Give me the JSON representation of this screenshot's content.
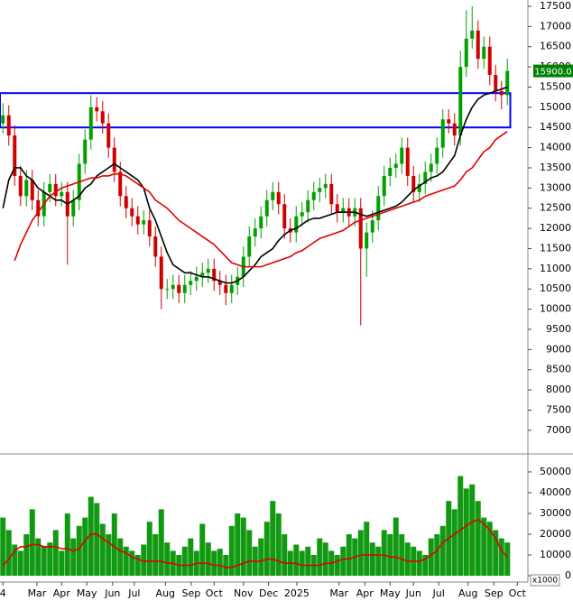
{
  "chart_data": [
    {
      "type": "candlestick",
      "x": [
        0.5,
        1.5,
        2.5,
        3.5,
        4.5,
        5.5,
        6.5,
        7.5,
        8.5,
        9.5,
        10.5,
        11.5,
        12.5,
        13.5,
        14.5,
        15.5,
        16.5,
        17.5,
        18.5,
        19.5,
        20.5,
        21.5,
        22.5,
        23.5,
        24.5,
        25.5,
        26.5,
        27.5,
        28.5,
        29.5,
        30.5,
        31.5,
        32.5,
        33.5,
        34.5,
        35.5,
        36.5,
        37.5,
        38.5,
        39.5,
        40.5,
        41.5,
        42.5,
        43.5,
        44.5,
        45.5,
        46.5,
        47.5,
        48.5,
        49.5,
        50.5,
        51.5,
        52.5,
        53.5,
        54.5,
        55.5,
        56.5,
        57.5,
        58.5,
        59.5,
        60.5,
        61.5,
        62.5,
        63.5,
        64.5,
        65.5,
        66.5,
        67.5,
        68.5,
        69.5,
        70.5,
        71.5,
        72.5,
        73.5,
        74.5,
        75.5,
        76.5,
        77.5,
        78.5,
        79.5,
        80.5,
        81.5,
        82.5,
        83.5,
        84.5,
        85.5,
        86.5
      ],
      "open": [
        14600,
        14800,
        14300,
        13300,
        12800,
        13200,
        12700,
        12300,
        12900,
        13100,
        12800,
        12900,
        12300,
        12700,
        13600,
        14200,
        15000,
        14900,
        14600,
        14000,
        13400,
        12800,
        12500,
        12300,
        12100,
        12200,
        11800,
        11300,
        10500,
        10500,
        10600,
        10400,
        10600,
        10700,
        10800,
        10900,
        11000,
        10700,
        10600,
        10400,
        10600,
        10800,
        11300,
        11800,
        12000,
        12300,
        12700,
        12900,
        12600,
        12000,
        11900,
        12300,
        12400,
        12700,
        12900,
        13000,
        13100,
        12600,
        12400,
        12500,
        12300,
        12500,
        11500,
        11900,
        12200,
        12800,
        13300,
        13500,
        13600,
        14000,
        13300,
        12900,
        13100,
        13400,
        13600,
        14000,
        14700,
        14600,
        14300,
        16000,
        16700,
        16900,
        16200,
        16500,
        15800,
        15400,
        15300
      ],
      "high": [
        15100,
        15050,
        14550,
        13550,
        13450,
        13450,
        12950,
        13150,
        13350,
        13350,
        13150,
        13150,
        12950,
        13850,
        14450,
        15300,
        15250,
        15150,
        14850,
        14250,
        13650,
        13050,
        12750,
        12550,
        12450,
        12450,
        12050,
        11550,
        10750,
        10850,
        10850,
        10850,
        10950,
        11050,
        11150,
        11250,
        11250,
        10950,
        10850,
        10850,
        11050,
        11550,
        12050,
        12250,
        12550,
        12950,
        13150,
        13150,
        12850,
        12250,
        12550,
        12650,
        12950,
        13150,
        13250,
        13350,
        13350,
        12850,
        12750,
        12750,
        12750,
        12750,
        12150,
        12450,
        13050,
        13550,
        13750,
        13850,
        14250,
        14250,
        13550,
        13350,
        13650,
        13850,
        14250,
        14950,
        14950,
        14850,
        16400,
        17400,
        17500,
        17150,
        16750,
        16750,
        16050,
        15650,
        16200
      ],
      "low": [
        14350,
        14050,
        13050,
        12550,
        12550,
        12450,
        12050,
        12050,
        12650,
        12550,
        12550,
        11100,
        12050,
        12450,
        13350,
        13950,
        14650,
        14350,
        13750,
        13150,
        12550,
        12250,
        12050,
        11850,
        11850,
        11550,
        11050,
        10000,
        10250,
        10250,
        10150,
        10150,
        10350,
        10450,
        10550,
        10650,
        10450,
        10350,
        10100,
        10150,
        10350,
        10550,
        11050,
        11550,
        11750,
        12050,
        12450,
        12350,
        11750,
        11650,
        11650,
        12050,
        12150,
        12450,
        12650,
        12750,
        12350,
        12150,
        12150,
        12050,
        12050,
        9600,
        10800,
        11650,
        11950,
        12550,
        13050,
        13250,
        13350,
        13050,
        12650,
        12650,
        12850,
        13150,
        13350,
        13750,
        14350,
        14050,
        14050,
        15750,
        16450,
        15950,
        15950,
        15550,
        15150,
        14950,
        15050
      ],
      "close": [
        14800,
        14300,
        13300,
        12800,
        13200,
        12700,
        12300,
        12900,
        13100,
        12800,
        12900,
        12300,
        12700,
        13600,
        14200,
        15000,
        14900,
        14600,
        14000,
        13400,
        12800,
        12500,
        12300,
        12100,
        12200,
        11800,
        11300,
        10500,
        10500,
        10600,
        10400,
        10600,
        10700,
        10800,
        10900,
        11000,
        10700,
        10600,
        10400,
        10600,
        10800,
        11300,
        11800,
        12000,
        12300,
        12700,
        12900,
        12600,
        12000,
        11900,
        12300,
        12400,
        12700,
        12900,
        13000,
        13100,
        12600,
        12400,
        12500,
        12300,
        12500,
        11500,
        11900,
        12200,
        12800,
        13300,
        13500,
        13600,
        14000,
        13300,
        12900,
        13100,
        13400,
        13600,
        14000,
        14700,
        14600,
        14300,
        16000,
        16700,
        16900,
        16200,
        16500,
        15800,
        15400,
        15300,
        15900
      ],
      "up_color": "#00a000",
      "down_color": "#d00000",
      "series": [
        {
          "color": "#000000",
          "values": [
            12500,
            13200,
            13500,
            13500,
            13300,
            13200,
            13000,
            12900,
            12800,
            12700,
            12700,
            12600,
            12700,
            12800,
            13000,
            13100,
            13300,
            13400,
            13500,
            13600,
            13500,
            13400,
            13300,
            13200,
            13000,
            12500,
            12200,
            11800,
            11400,
            11100,
            11000,
            10900,
            10900,
            10850,
            10800,
            10800,
            10750,
            10700,
            10650,
            10650,
            10700,
            10800,
            10950,
            11100,
            11300,
            11400,
            11500,
            11700,
            11850,
            11950,
            12000,
            12100,
            12200,
            12250,
            12250,
            12300,
            12350,
            12400,
            12400,
            12400,
            12400,
            12350,
            12300,
            12350,
            12400,
            12450,
            12500,
            12550,
            12650,
            12800,
            12950,
            13050,
            13150,
            13250,
            13300,
            13400,
            13600,
            13800,
            14300,
            14700,
            15000,
            15200,
            15300,
            15350,
            15400,
            15450,
            15500
          ]
        },
        {
          "color": "#e00000",
          "values": [
            null,
            null,
            11200,
            11600,
            11900,
            12200,
            12400,
            12600,
            12800,
            12900,
            13000,
            13050,
            13100,
            13150,
            13200,
            13250,
            13250,
            13300,
            13300,
            13350,
            13350,
            13300,
            13200,
            13100,
            13000,
            12900,
            12700,
            12600,
            12500,
            12350,
            12200,
            12100,
            12000,
            11900,
            11800,
            11700,
            11600,
            11450,
            11300,
            11150,
            11100,
            11050,
            11050,
            11050,
            11050,
            11100,
            11150,
            11200,
            11250,
            11300,
            11400,
            11450,
            11550,
            11650,
            11750,
            11800,
            11850,
            11900,
            11950,
            12050,
            12150,
            12200,
            12250,
            12300,
            12350,
            12400,
            12450,
            12500,
            12550,
            12600,
            12650,
            12700,
            12800,
            12850,
            12900,
            12950,
            13000,
            13050,
            13200,
            13400,
            13500,
            13700,
            13900,
            14000,
            14200,
            14300,
            14400
          ]
        }
      ],
      "xlim": [
        0,
        90
      ],
      "ylim": [
        6483,
        17656
      ],
      "yticks": [
        7000,
        7500,
        8000,
        8500,
        9000,
        9500,
        10000,
        10500,
        11000,
        11500,
        12000,
        12500,
        13000,
        13500,
        14000,
        14500,
        15000,
        15500,
        16000,
        16500,
        17000,
        17500
      ],
      "annotation_box": {
        "x": [
          0,
          87
        ],
        "y": [
          14500,
          15350
        ],
        "color": "#0000ff"
      },
      "last_price": {
        "value": 15900,
        "label": "15900.0",
        "color": "#008000"
      }
    },
    {
      "type": "bar",
      "x": [
        0.5,
        1.5,
        2.5,
        3.5,
        4.5,
        5.5,
        6.5,
        7.5,
        8.5,
        9.5,
        10.5,
        11.5,
        12.5,
        13.5,
        14.5,
        15.5,
        16.5,
        17.5,
        18.5,
        19.5,
        20.5,
        21.5,
        22.5,
        23.5,
        24.5,
        25.5,
        26.5,
        27.5,
        28.5,
        29.5,
        30.5,
        31.5,
        32.5,
        33.5,
        34.5,
        35.5,
        36.5,
        37.5,
        38.5,
        39.5,
        40.5,
        41.5,
        42.5,
        43.5,
        44.5,
        45.5,
        46.5,
        47.5,
        48.5,
        49.5,
        50.5,
        51.5,
        52.5,
        53.5,
        54.5,
        55.5,
        56.5,
        57.5,
        58.5,
        59.5,
        60.5,
        61.5,
        62.5,
        63.5,
        64.5,
        65.5,
        66.5,
        67.5,
        68.5,
        69.5,
        70.5,
        71.5,
        72.5,
        73.5,
        74.5,
        75.5,
        76.5,
        77.5,
        78.5,
        79.5,
        80.5,
        81.5,
        82.5,
        83.5,
        84.5,
        85.5,
        86.5
      ],
      "values": [
        28000,
        22000,
        15000,
        12000,
        20000,
        32000,
        18000,
        14000,
        16000,
        22000,
        12000,
        30000,
        18000,
        24000,
        28000,
        38000,
        35000,
        25000,
        20000,
        30000,
        18000,
        14000,
        12000,
        10000,
        15000,
        26000,
        20000,
        32000,
        16000,
        12000,
        10000,
        14000,
        18000,
        12000,
        25000,
        16000,
        12000,
        13000,
        10000,
        24000,
        30000,
        28000,
        22000,
        14000,
        18000,
        26000,
        36000,
        30000,
        20000,
        12000,
        15000,
        12000,
        14000,
        10000,
        18000,
        16000,
        12000,
        10000,
        14000,
        20000,
        18000,
        22000,
        26000,
        16000,
        14000,
        22000,
        20000,
        28000,
        20000,
        16000,
        14000,
        12000,
        10000,
        18000,
        20000,
        24000,
        36000,
        32000,
        48000,
        42000,
        44000,
        36000,
        28000,
        26000,
        22000,
        18000,
        16000
      ],
      "color": "#119911",
      "series": [
        {
          "color": "#e00000",
          "values": [
            5000,
            8000,
            12000,
            14000,
            14000,
            15000,
            15000,
            14000,
            14000,
            14000,
            13000,
            13000,
            12000,
            13000,
            17000,
            20000,
            20000,
            18000,
            16000,
            14000,
            12000,
            11000,
            9000,
            8000,
            7000,
            7000,
            7000,
            7000,
            6000,
            6000,
            5000,
            5000,
            5000,
            6000,
            6000,
            6000,
            5000,
            5000,
            4000,
            4000,
            5000,
            6000,
            7000,
            7000,
            7000,
            8000,
            8000,
            7000,
            6000,
            6000,
            6000,
            5000,
            5000,
            5000,
            5000,
            6000,
            6000,
            7000,
            8000,
            8000,
            9000,
            10000,
            10000,
            10000,
            10000,
            10000,
            9000,
            9000,
            8000,
            7000,
            7000,
            7000,
            8000,
            10000,
            12000,
            16000,
            18000,
            20000,
            22000,
            24000,
            26000,
            27000,
            25000,
            22000,
            18000,
            12000,
            9000
          ]
        }
      ],
      "xlim": [
        0,
        90
      ],
      "ylim": [
        0,
        57800
      ],
      "yticks": [
        0,
        10000,
        20000,
        30000,
        40000,
        50000
      ],
      "unit_label": "x1000",
      "xticks": [
        {
          "value": 0.5,
          "label": "4"
        },
        {
          "value": 6.3,
          "label": "Mar"
        },
        {
          "value": 10.5,
          "label": "Apr"
        },
        {
          "value": 14.8,
          "label": "May"
        },
        {
          "value": 19.2,
          "label": "Jun"
        },
        {
          "value": 22.9,
          "label": "Jul"
        },
        {
          "value": 28.2,
          "label": "Aug"
        },
        {
          "value": 32.6,
          "label": "Sep"
        },
        {
          "value": 36.5,
          "label": "Oct"
        },
        {
          "value": 41.5,
          "label": "Nov"
        },
        {
          "value": 45.8,
          "label": "Dec"
        },
        {
          "value": 50.6,
          "label": "2025"
        },
        {
          "value": 57.8,
          "label": "Mar"
        },
        {
          "value": 62.2,
          "label": "Apr"
        },
        {
          "value": 66.5,
          "label": "May"
        },
        {
          "value": 70.5,
          "label": "Jun"
        },
        {
          "value": 74.8,
          "label": "Jul"
        },
        {
          "value": 79.8,
          "label": "Aug"
        },
        {
          "value": 84.2,
          "label": "Sep"
        },
        {
          "value": 88.2,
          "label": "Oct"
        }
      ]
    }
  ]
}
